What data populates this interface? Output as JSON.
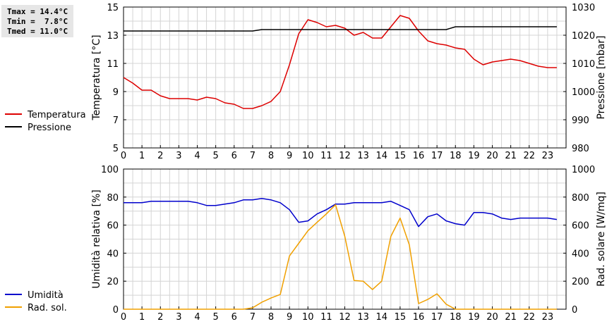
{
  "stats": {
    "tmax": "Tmax = 14.4°C",
    "tmin": "Tmin =  7.8°C",
    "tmed": "Tmed = 11.0°C"
  },
  "chart_data": [
    {
      "type": "line",
      "ylabel": "Temperatura [°C]",
      "y2label": "Pressione [mbar]",
      "xlim": [
        0,
        24
      ],
      "ylim": [
        5,
        15
      ],
      "y2lim": [
        980,
        1030
      ],
      "xticks": [
        "0",
        "1",
        "2",
        "3",
        "4",
        "5",
        "6",
        "7",
        "8",
        "9",
        "10",
        "11",
        "12",
        "13",
        "14",
        "15",
        "16",
        "17",
        "18",
        "19",
        "20",
        "21",
        "22",
        "23"
      ],
      "yticks": [
        "5",
        "7",
        "9",
        "11",
        "13",
        "15"
      ],
      "y2ticks": [
        "980",
        "990",
        "1000",
        "1010",
        "1020",
        "1030"
      ],
      "grid": true,
      "legend_position": "left",
      "series": [
        {
          "name": "Temperatura",
          "axis": "left",
          "color": "#dd0000",
          "x": [
            0,
            0.5,
            1,
            1.5,
            2,
            2.5,
            3,
            3.5,
            4,
            4.5,
            5,
            5.5,
            6,
            6.5,
            7,
            7.5,
            8,
            8.5,
            9,
            9.5,
            10,
            10.5,
            11,
            11.5,
            12,
            12.5,
            13,
            13.5,
            14,
            14.5,
            15,
            15.5,
            16,
            16.5,
            17,
            17.5,
            18,
            18.5,
            19,
            19.5,
            20,
            20.5,
            21,
            21.5,
            22,
            22.5,
            23,
            23.5
          ],
          "values": [
            10.0,
            9.6,
            9.1,
            9.1,
            8.7,
            8.5,
            8.5,
            8.5,
            8.4,
            8.6,
            8.5,
            8.2,
            8.1,
            7.8,
            7.8,
            8.0,
            8.3,
            9.0,
            10.9,
            13.1,
            14.1,
            13.9,
            13.6,
            13.7,
            13.5,
            13.0,
            13.2,
            12.8,
            12.8,
            13.6,
            14.4,
            14.2,
            13.3,
            12.6,
            12.4,
            12.3,
            12.1,
            12.0,
            11.3,
            10.9,
            11.1,
            11.2,
            11.3,
            11.2,
            11.0,
            10.8,
            10.7,
            10.7
          ]
        },
        {
          "name": "Pressione",
          "axis": "right",
          "color": "#000000",
          "x": [
            0,
            7,
            7.5,
            17.5,
            18,
            23.5
          ],
          "values": [
            1021.5,
            1021.5,
            1022,
            1022,
            1023,
            1023
          ]
        }
      ]
    },
    {
      "type": "line",
      "ylabel": "Umidità relativa [%]",
      "y2label": "Rad. solare [W/mq]",
      "xlim": [
        0,
        24
      ],
      "ylim": [
        0,
        100
      ],
      "y2lim": [
        0,
        1000
      ],
      "xticks": [
        "0",
        "1",
        "2",
        "3",
        "4",
        "5",
        "6",
        "7",
        "8",
        "9",
        "10",
        "11",
        "12",
        "13",
        "14",
        "15",
        "16",
        "17",
        "18",
        "19",
        "20",
        "21",
        "22",
        "23"
      ],
      "yticks": [
        "0",
        "20",
        "40",
        "60",
        "80",
        "100"
      ],
      "y2ticks": [
        "0",
        "200",
        "400",
        "600",
        "800",
        "1000"
      ],
      "grid": true,
      "legend_position": "left",
      "series": [
        {
          "name": "Umidità",
          "axis": "left",
          "color": "#0000cc",
          "x": [
            0,
            0.5,
            1,
            1.5,
            2,
            2.5,
            3,
            3.5,
            4,
            4.5,
            5,
            5.5,
            6,
            6.5,
            7,
            7.5,
            8,
            8.5,
            9,
            9.5,
            10,
            10.5,
            11,
            11.5,
            12,
            12.5,
            13,
            13.5,
            14,
            14.5,
            15,
            15.5,
            16,
            16.5,
            17,
            17.5,
            18,
            18.5,
            19,
            19.5,
            20,
            20.5,
            21,
            21.5,
            22,
            22.5,
            23,
            23.5
          ],
          "values": [
            76,
            76,
            76,
            77,
            77,
            77,
            77,
            77,
            76,
            74,
            74,
            75,
            76,
            78,
            78,
            79,
            78,
            76,
            71,
            62,
            63,
            68,
            71,
            75,
            75,
            76,
            76,
            76,
            76,
            77,
            74,
            71,
            59,
            66,
            68,
            63,
            61,
            60,
            69,
            69,
            68,
            65,
            64,
            65,
            65,
            65,
            65,
            64
          ]
        },
        {
          "name": "Rad. sol.",
          "axis": "right",
          "color": "#f0a000",
          "x": [
            0,
            0.5,
            1,
            1.5,
            2,
            2.5,
            3,
            3.5,
            4,
            4.5,
            5,
            5.5,
            6,
            6.5,
            7,
            7.5,
            8,
            8.5,
            9,
            9.5,
            10,
            10.5,
            11,
            11.5,
            12,
            12.5,
            13,
            13.5,
            14,
            14.5,
            15,
            15.5,
            16,
            16.5,
            17,
            17.5,
            18,
            18.5,
            19,
            19.5,
            20,
            20.5,
            21,
            21.5,
            22,
            22.5,
            23,
            23.5
          ],
          "values": [
            0,
            0,
            0,
            0,
            0,
            0,
            0,
            0,
            0,
            0,
            0,
            0,
            0,
            0,
            10,
            50,
            80,
            105,
            380,
            470,
            560,
            620,
            680,
            745,
            520,
            205,
            200,
            140,
            200,
            520,
            650,
            460,
            40,
            70,
            110,
            35,
            0,
            0,
            0,
            0,
            0,
            0,
            0,
            0,
            0,
            0,
            0,
            0
          ]
        }
      ]
    }
  ]
}
